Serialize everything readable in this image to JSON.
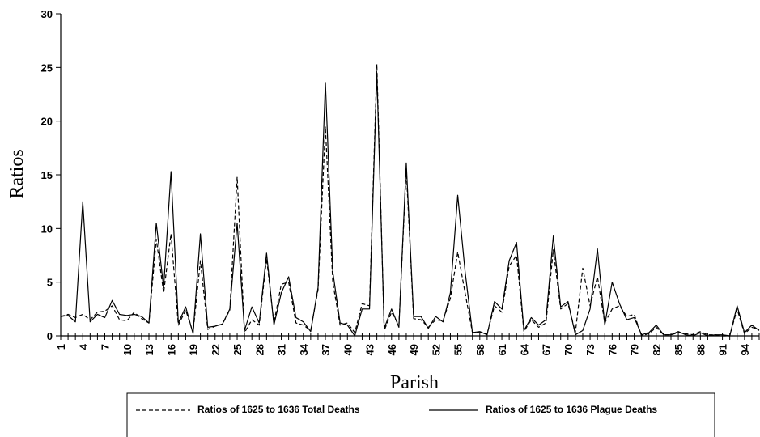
{
  "chart_data": {
    "type": "line",
    "x_label": "Parish",
    "y_label": "Ratios",
    "x": [
      1,
      2,
      3,
      4,
      5,
      6,
      7,
      8,
      9,
      10,
      11,
      12,
      13,
      14,
      15,
      16,
      17,
      18,
      19,
      20,
      21,
      22,
      23,
      24,
      25,
      26,
      27,
      28,
      29,
      30,
      31,
      32,
      33,
      34,
      35,
      36,
      37,
      38,
      39,
      40,
      41,
      42,
      43,
      44,
      45,
      46,
      47,
      48,
      49,
      50,
      51,
      52,
      53,
      54,
      55,
      56,
      57,
      58,
      59,
      60,
      61,
      62,
      63,
      64,
      65,
      66,
      67,
      68,
      69,
      70,
      71,
      72,
      73,
      74,
      75,
      76,
      77,
      78,
      79,
      80,
      81,
      82,
      83,
      84,
      85,
      86,
      87,
      88,
      89,
      90,
      91,
      92,
      93,
      94,
      95,
      96
    ],
    "xlim": [
      1,
      96
    ],
    "xticks": [
      1,
      4,
      7,
      10,
      13,
      16,
      19,
      22,
      25,
      28,
      31,
      34,
      37,
      40,
      43,
      46,
      49,
      52,
      55,
      58,
      61,
      64,
      67,
      70,
      73,
      76,
      79,
      82,
      85,
      88,
      91,
      94
    ],
    "ylim": [
      0,
      30
    ],
    "yticks": [
      0,
      5,
      10,
      15,
      20,
      25,
      30
    ],
    "series": [
      {
        "name": "Ratios of 1625 to 1636 Total Deaths",
        "color": "#000000",
        "dashed": true,
        "values": [
          1.8,
          2.0,
          1.7,
          2.0,
          1.5,
          2.2,
          2.3,
          2.8,
          1.5,
          1.4,
          2.2,
          1.6,
          1.2,
          9.0,
          4.0,
          9.5,
          1.0,
          2.4,
          0.3,
          7.0,
          0.6,
          0.9,
          1.1,
          2.4,
          14.8,
          0.3,
          1.5,
          1.0,
          7.2,
          1.2,
          4.8,
          5.0,
          1.2,
          1.0,
          0.5,
          4.3,
          19.5,
          5.0,
          1.0,
          1.2,
          0.3,
          3.0,
          2.8,
          25.3,
          0.5,
          2.2,
          1.0,
          15.5,
          1.6,
          1.5,
          0.8,
          1.5,
          1.4,
          3.5,
          7.8,
          4.0,
          0.3,
          0.3,
          0.2,
          2.8,
          2.2,
          6.5,
          7.5,
          0.4,
          1.5,
          0.8,
          1.2,
          8.0,
          2.5,
          3.0,
          0.3,
          6.3,
          2.8,
          5.5,
          1.2,
          2.5,
          2.8,
          1.8,
          2.0,
          0.0,
          0.2,
          0.8,
          0.1,
          0.1,
          0.3,
          0.2,
          0.1,
          0.4,
          0.1,
          0.1,
          0.0,
          0.0,
          2.5,
          0.2,
          0.8,
          0.6
        ]
      },
      {
        "name": "Ratios of 1625 to 1636 Plague Deaths",
        "color": "#000000",
        "dashed": false,
        "values": [
          1.8,
          1.9,
          1.3,
          12.5,
          1.3,
          2.0,
          1.7,
          3.3,
          2.0,
          1.9,
          2.0,
          1.8,
          1.2,
          10.5,
          4.5,
          15.3,
          1.2,
          2.7,
          0.2,
          9.5,
          0.8,
          0.9,
          1.1,
          2.5,
          10.5,
          0.5,
          2.7,
          1.2,
          7.7,
          1.0,
          4.0,
          5.5,
          1.7,
          1.3,
          0.4,
          4.5,
          23.6,
          6.0,
          1.2,
          1.0,
          0.0,
          2.5,
          2.5,
          24.5,
          0.7,
          2.5,
          0.8,
          16.1,
          1.8,
          1.8,
          0.7,
          1.8,
          1.3,
          4.0,
          13.1,
          6.0,
          0.3,
          0.4,
          0.1,
          3.2,
          2.5,
          7.0,
          8.7,
          0.5,
          1.7,
          1.0,
          1.5,
          9.3,
          2.7,
          3.2,
          0.1,
          0.5,
          2.5,
          8.1,
          1.0,
          5.0,
          3.0,
          1.5,
          1.7,
          0.1,
          0.3,
          1.0,
          0.1,
          0.1,
          0.4,
          0.1,
          0.0,
          0.3,
          0.0,
          0.1,
          0.1,
          0.0,
          2.8,
          0.3,
          1.0,
          0.5
        ]
      }
    ]
  }
}
